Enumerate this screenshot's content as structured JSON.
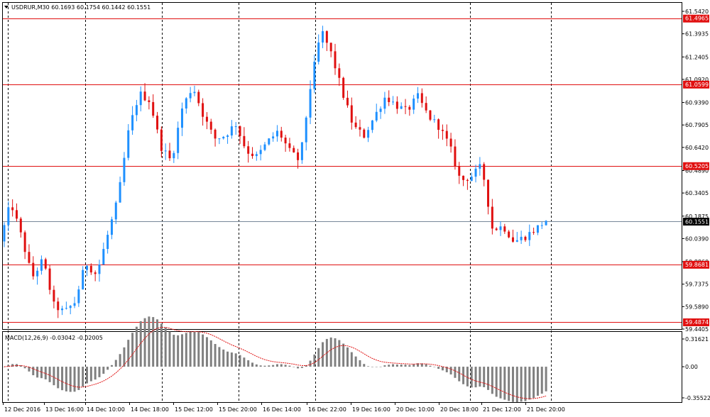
{
  "header": {
    "symbol_line": "USDRUR,M30  60.1693 60.1754 60.1442 60.1551",
    "macd_label": "MACD(12,26,9) -0.03042 -0.02005"
  },
  "colors": {
    "bull": "#1e90ff",
    "bear": "#e01010",
    "level_line": "#e01010",
    "price_line": "#778899",
    "histogram": "#808080",
    "signal": "#e01010",
    "grid": "#000000"
  },
  "chart_data": [
    {
      "type": "candlestick",
      "title": "USDRUR,M30",
      "ylim": [
        59.4405,
        61.542
      ],
      "y_ticks": [
        "61.5420",
        "61.3935",
        "61.2405",
        "61.0920",
        "60.9390",
        "60.7905",
        "60.6420",
        "60.4890",
        "60.3405",
        "60.1875",
        "60.0390",
        "59.8860",
        "59.7375",
        "59.5890",
        "59.4405"
      ],
      "x_ticks": [
        "12 Dec 2016",
        "13 Dec 16:00",
        "14 Dec 10:00",
        "14 Dec 18:00",
        "15 Dec 12:00",
        "15 Dec 20:00",
        "16 Dec 14:00",
        "16 Dec 22:00",
        "19 Dec 16:00",
        "20 Dec 10:00",
        "20 Dec 18:00",
        "21 Dec 12:00",
        "21 Dec 20:00"
      ],
      "session_separators": [
        "12 Dec 2016",
        "13 Dec 16:00",
        "14 Dec 18:00",
        "15 Dec 20:00",
        "16 Dec 22:00",
        "20 Dec 18:00",
        "21 Dec 20:00"
      ],
      "levels": [
        {
          "value": 61.4965,
          "label": "61.4965"
        },
        {
          "value": 61.0599,
          "label": "61.0599"
        },
        {
          "value": 60.5205,
          "label": "60.5205"
        },
        {
          "value": 59.8681,
          "label": "59.8681"
        },
        {
          "value": 59.4874,
          "label": "59.4874"
        }
      ],
      "current_price": {
        "value": 60.1551,
        "label": "60.1551"
      },
      "anchors": [
        60.02,
        60.28,
        60.05,
        59.78,
        59.9,
        59.6,
        59.55,
        59.62,
        59.88,
        59.8,
        60.05,
        60.3,
        60.75,
        61.0,
        60.95,
        60.65,
        60.55,
        60.9,
        61.05,
        60.85,
        60.7,
        60.72,
        60.8,
        60.62,
        60.58,
        60.68,
        60.75,
        60.62,
        60.55,
        61.05,
        61.42,
        61.25,
        61.0,
        60.78,
        60.72,
        60.85,
        60.98,
        60.92,
        60.88,
        60.98,
        60.85,
        60.78,
        60.65,
        60.42,
        60.45,
        60.52,
        60.1,
        60.12,
        60.02,
        60.05,
        60.1,
        60.16
      ]
    },
    {
      "type": "macd",
      "title": "MACD(12,26,9)",
      "ylim": [
        -0.35522,
        0.31621
      ],
      "y_ticks": [
        "0.31621",
        "0.00",
        "-0.35522"
      ],
      "main_value": -0.03042,
      "signal_value": -0.02005
    }
  ]
}
